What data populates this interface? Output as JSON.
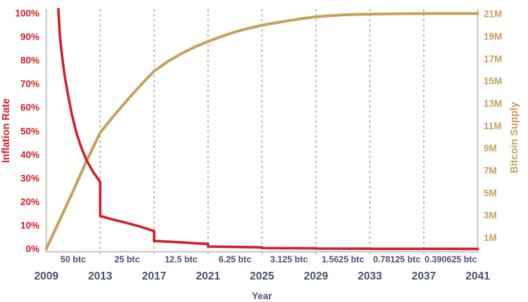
{
  "chart_data": {
    "type": "line",
    "title": "",
    "x_axis": {
      "label": "Year",
      "ticks": [
        "2009",
        "2013",
        "2017",
        "2021",
        "2025",
        "2029",
        "2033",
        "2037",
        "2041"
      ],
      "range": [
        2009,
        2041
      ]
    },
    "left_axis": {
      "label": "Inflation Rate",
      "color": "#d0202a",
      "ticks": [
        "100%",
        "90%",
        "80%",
        "70%",
        "60%",
        "50%",
        "40%",
        "30%",
        "20%",
        "10%",
        "0%"
      ],
      "range": [
        0,
        100
      ]
    },
    "right_axis": {
      "label": "Bitcoin Supply",
      "color": "#c6a15d",
      "ticks": [
        "21M",
        "19M",
        "17M",
        "15M",
        "13M",
        "11M",
        "9M",
        "7M",
        "5M",
        "3M",
        "1M"
      ],
      "range": [
        0,
        21
      ]
    },
    "halving_years": [
      2013,
      2017,
      2021,
      2025,
      2029,
      2033,
      2037
    ],
    "block_reward_labels": [
      "50 btc",
      "25 btc",
      "12.5 btc",
      "6.25 btc",
      "3.125 btc",
      "1.5625 btc",
      "0.78125 btc",
      "0.390625 btc"
    ],
    "grid": "vertical-dashed",
    "legend": "none",
    "series": [
      {
        "name": "Bitcoin Supply",
        "axis": "right",
        "color": "#c6a15d",
        "points": [
          [
            2009,
            0
          ],
          [
            2010,
            2.6
          ],
          [
            2011,
            5.2
          ],
          [
            2012,
            7.9
          ],
          [
            2013,
            10.4
          ],
          [
            2014,
            11.9
          ],
          [
            2015,
            13.3
          ],
          [
            2016,
            14.65
          ],
          [
            2017,
            15.9
          ],
          [
            2018,
            16.75
          ],
          [
            2019,
            17.45
          ],
          [
            2020,
            18.05
          ],
          [
            2021,
            18.55
          ],
          [
            2022,
            19.0
          ],
          [
            2023,
            19.4
          ],
          [
            2024,
            19.72
          ],
          [
            2025,
            20.0
          ],
          [
            2026,
            20.22
          ],
          [
            2027,
            20.42
          ],
          [
            2028,
            20.6
          ],
          [
            2029,
            20.75
          ],
          [
            2030,
            20.85
          ],
          [
            2031,
            20.92
          ],
          [
            2032,
            20.97
          ],
          [
            2033,
            21.0
          ],
          [
            2035,
            21.03
          ],
          [
            2037,
            21.05
          ],
          [
            2041,
            21.05
          ]
        ]
      },
      {
        "name": "Inflation Rate",
        "axis": "left",
        "color": "#d0202a",
        "points": [
          [
            2009.9,
            101.8
          ],
          [
            2010.0,
            91
          ],
          [
            2010.15,
            83
          ],
          [
            2010.35,
            74
          ],
          [
            2010.6,
            66
          ],
          [
            2010.9,
            57
          ],
          [
            2011.25,
            49
          ],
          [
            2011.6,
            43
          ],
          [
            2012.0,
            37.5
          ],
          [
            2012.5,
            32.5
          ],
          [
            2013,
            28.5
          ],
          [
            2013,
            14
          ],
          [
            2013.8,
            12.7
          ],
          [
            2014.8,
            11.3
          ],
          [
            2015.9,
            9.6
          ],
          [
            2017,
            7.6
          ],
          [
            2017,
            3.4
          ],
          [
            2018,
            3.1
          ],
          [
            2019,
            2.8
          ],
          [
            2020,
            2.45
          ],
          [
            2021,
            2.15
          ],
          [
            2021,
            1.05
          ],
          [
            2022,
            0.95
          ],
          [
            2023,
            0.85
          ],
          [
            2024,
            0.77
          ],
          [
            2025,
            0.7
          ],
          [
            2025,
            0.38
          ],
          [
            2027,
            0.33
          ],
          [
            2029,
            0.28
          ],
          [
            2029,
            0.15
          ],
          [
            2033,
            0.12
          ],
          [
            2033,
            0.07
          ],
          [
            2037,
            0.05
          ],
          [
            2041,
            0.04
          ]
        ]
      }
    ]
  },
  "colors": {
    "background": "#ffffff",
    "axis_line": "#c5c5c5",
    "dashed_line": "#b3b3b3",
    "text": "#47526b",
    "inflation_red": "#d0202a",
    "supply_gold": "#c6a15d"
  }
}
